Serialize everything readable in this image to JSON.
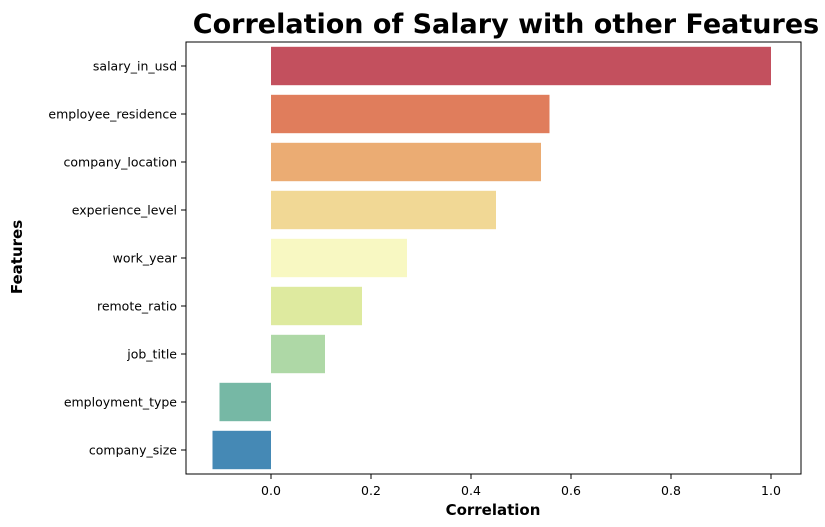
{
  "chart_data": {
    "type": "bar",
    "orientation": "horizontal",
    "title": "Correlation of Salary with other Features",
    "xlabel": "Correlation",
    "ylabel": "Features",
    "xlim": [
      -0.17,
      1.06
    ],
    "xticks": [
      "0.0",
      "0.2",
      "0.4",
      "0.6",
      "0.8",
      "1.0"
    ],
    "categories": [
      "salary_in_usd",
      "employee_residence",
      "company_location",
      "experience_level",
      "work_year",
      "remote_ratio",
      "job_title",
      "employment_type",
      "company_size"
    ],
    "values": [
      1.0,
      0.557,
      0.54,
      0.45,
      0.272,
      0.182,
      0.108,
      -0.103,
      -0.117
    ],
    "colors": [
      "#c3505e",
      "#e07d5c",
      "#ebac73",
      "#f1d895",
      "#f8f8c2",
      "#deea9f",
      "#aed8a6",
      "#76b8a5",
      "#4589b5"
    ],
    "grid": false,
    "legend": "none"
  }
}
